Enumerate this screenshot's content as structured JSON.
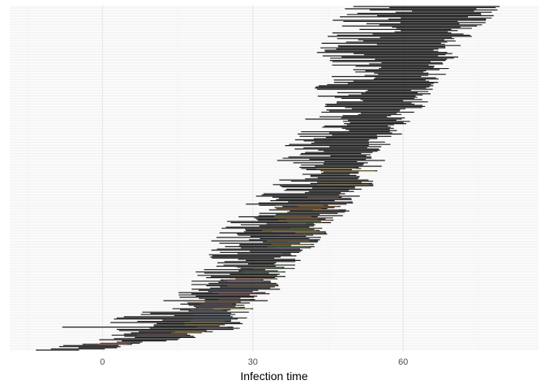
{
  "chart_data": {
    "type": "range-segments",
    "title": "",
    "xlabel": "Infection time",
    "ylabel": "",
    "xlim": [
      -18.5,
      87
    ],
    "x_ticks": [
      0,
      30,
      60
    ],
    "x_tick_labels": [
      "0",
      "30",
      "60"
    ],
    "grid": true,
    "legend": "none",
    "n_rows": 300,
    "overlay_palette": [
      "#e15759",
      "#4e79a7",
      "#59a14f",
      "#f28e2b",
      "#b07aa1",
      "#edc948"
    ],
    "envelope": [
      {
        "row": 0,
        "start": -18,
        "end": 1
      },
      {
        "row": 4,
        "start": -9,
        "end": 8
      },
      {
        "row": 10,
        "start": 0,
        "end": 18
      },
      {
        "row": 20,
        "start": -9,
        "end": 29
      },
      {
        "row": 35,
        "start": 8,
        "end": 31
      },
      {
        "row": 55,
        "start": 17,
        "end": 36
      },
      {
        "row": 80,
        "start": 20,
        "end": 40
      },
      {
        "row": 110,
        "start": 23,
        "end": 47
      },
      {
        "row": 140,
        "start": 31,
        "end": 54
      },
      {
        "row": 170,
        "start": 35,
        "end": 57
      },
      {
        "row": 200,
        "start": 40,
        "end": 62
      },
      {
        "row": 225,
        "start": 41,
        "end": 67
      },
      {
        "row": 255,
        "start": 42,
        "end": 71
      },
      {
        "row": 280,
        "start": 45,
        "end": 75
      },
      {
        "row": 299,
        "start": 45,
        "end": 81
      }
    ]
  }
}
